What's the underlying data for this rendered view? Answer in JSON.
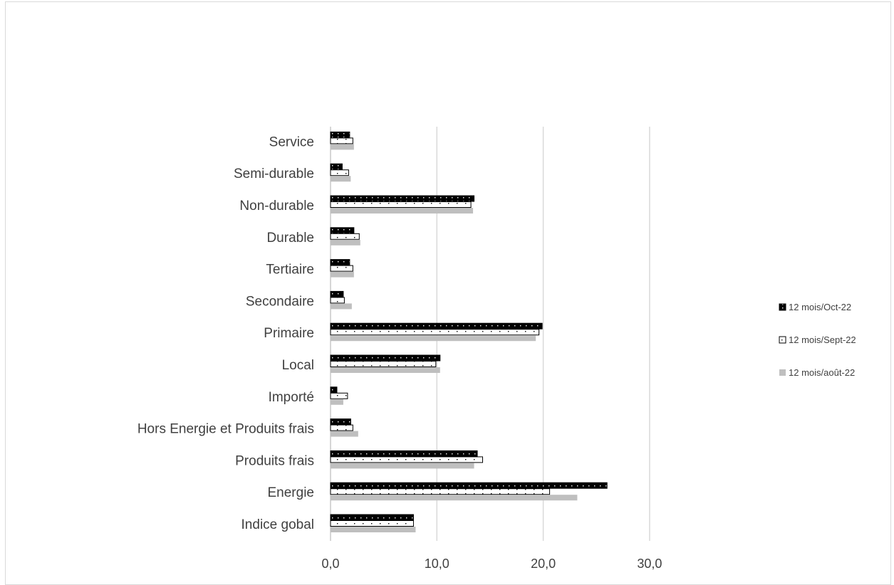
{
  "chart_data": {
    "type": "bar",
    "orientation": "horizontal",
    "categories": [
      "Indice gobal",
      "Energie",
      "Produits frais",
      "Hors Energie et Produits frais",
      "Importé",
      "Local",
      "Primaire",
      "Secondaire",
      "Tertiaire",
      "Durable",
      "Non-durable",
      "Semi-durable",
      "Service"
    ],
    "series": [
      {
        "name": "12 mois/Oct-22",
        "color": "#000000",
        "pattern": "dots-on-black",
        "values": [
          7.8,
          26.0,
          13.8,
          1.9,
          0.6,
          10.3,
          19.9,
          1.2,
          1.8,
          2.2,
          13.5,
          1.1,
          1.8
        ]
      },
      {
        "name": "12 mois/Sept-22",
        "color": "#ffffff",
        "pattern": "dots-on-white",
        "values": [
          7.8,
          20.6,
          14.3,
          2.1,
          1.6,
          9.9,
          19.6,
          1.3,
          2.1,
          2.7,
          13.2,
          1.7,
          2.1
        ]
      },
      {
        "name": "12 mois/août-22",
        "color": "#bfbfbf",
        "pattern": "solid",
        "values": [
          8.0,
          23.2,
          13.5,
          2.6,
          1.2,
          10.3,
          19.3,
          2.0,
          2.2,
          2.8,
          13.4,
          1.9,
          2.2
        ]
      }
    ],
    "xticks": [
      "0,0",
      "10,0",
      "20,0",
      "30,0"
    ],
    "xlim": [
      0,
      30
    ],
    "grid": true,
    "legend_position": "right"
  }
}
